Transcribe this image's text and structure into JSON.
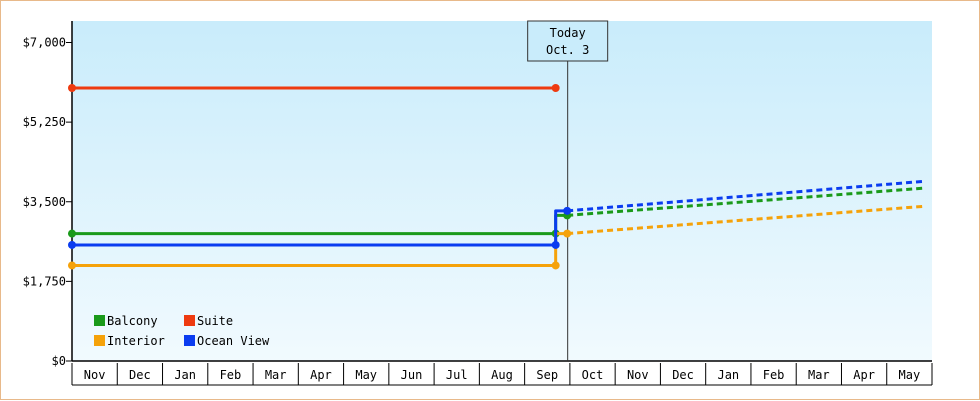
{
  "colors": {
    "background_top": "#c9ecfb",
    "background_bottom": "#f1fafe",
    "frame_border": "#e8b98a",
    "axis": "#000000"
  },
  "chart_data": {
    "type": "line",
    "title": "",
    "xlabel": "",
    "ylabel": "",
    "ylim": [
      0,
      8000
    ],
    "y_ticks": [
      0,
      1750,
      3500,
      5250,
      7000
    ],
    "y_tick_labels": [
      "$0",
      "$1,750",
      "$3,500",
      "$5,250",
      "$7,000"
    ],
    "x_categories": [
      "Nov",
      "Dec",
      "Jan",
      "Feb",
      "Mar",
      "Apr",
      "May",
      "Jun",
      "Jul",
      "Aug",
      "Sep",
      "Oct",
      "Nov",
      "Dec",
      "Jan",
      "Feb",
      "Mar",
      "Apr",
      "May"
    ],
    "today_marker": {
      "line1": "Today",
      "line2": "Oct. 3",
      "x_month_index": 10.75
    },
    "series": [
      {
        "name": "Balcony",
        "color": "#1a9a1a",
        "historical": [
          [
            0,
            2800
          ],
          [
            10.5,
            2800
          ],
          [
            10.5,
            3200
          ],
          [
            10.75,
            3200
          ]
        ],
        "projected": [
          [
            10.75,
            3200
          ],
          [
            18.5,
            3800
          ]
        ]
      },
      {
        "name": "Suite",
        "color": "#ee3a10",
        "historical": [
          [
            0,
            6000
          ],
          [
            10.5,
            6000
          ]
        ],
        "projected": []
      },
      {
        "name": "Interior",
        "color": "#f5a20a",
        "historical": [
          [
            0,
            2100
          ],
          [
            10.5,
            2100
          ],
          [
            10.5,
            2800
          ],
          [
            10.75,
            2800
          ]
        ],
        "projected": [
          [
            10.75,
            2800
          ],
          [
            18.5,
            3400
          ]
        ]
      },
      {
        "name": "Ocean View",
        "color": "#0a3cf0",
        "historical": [
          [
            0,
            2550
          ],
          [
            10.5,
            2550
          ],
          [
            10.5,
            3300
          ],
          [
            10.75,
            3300
          ]
        ],
        "projected": [
          [
            10.75,
            3300
          ],
          [
            18.5,
            3950
          ]
        ]
      }
    ],
    "legend_position": "bottom-left",
    "grid": false
  }
}
